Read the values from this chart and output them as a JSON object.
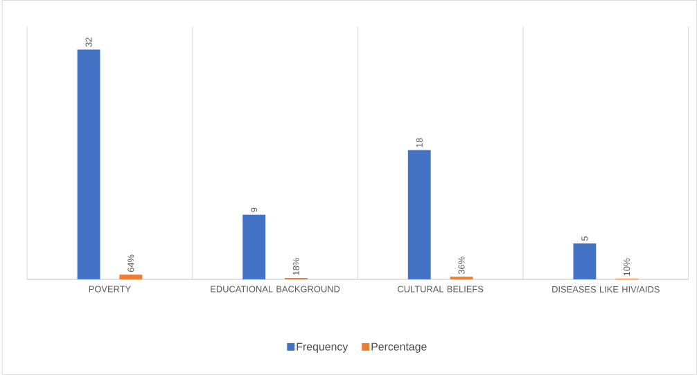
{
  "chart_data": {
    "type": "bar",
    "categories": [
      "POVERTY",
      "EDUCATIONAL BACKGROUND",
      "CULTURAL BELIEFS",
      "DISEASES LIKE HIV/AIDS"
    ],
    "series": [
      {
        "name": "Frequency",
        "color": "#4472c4",
        "values": [
          32,
          9,
          18,
          5
        ],
        "value_labels": [
          "32",
          "9",
          "18",
          "5"
        ]
      },
      {
        "name": "Percentage",
        "color": "#ed7d31",
        "values": [
          0.64,
          0.18,
          0.36,
          0.1
        ],
        "value_labels": [
          "64%",
          "18%",
          "36%",
          "10%"
        ]
      }
    ],
    "grid": "x",
    "legend": "bottom"
  }
}
